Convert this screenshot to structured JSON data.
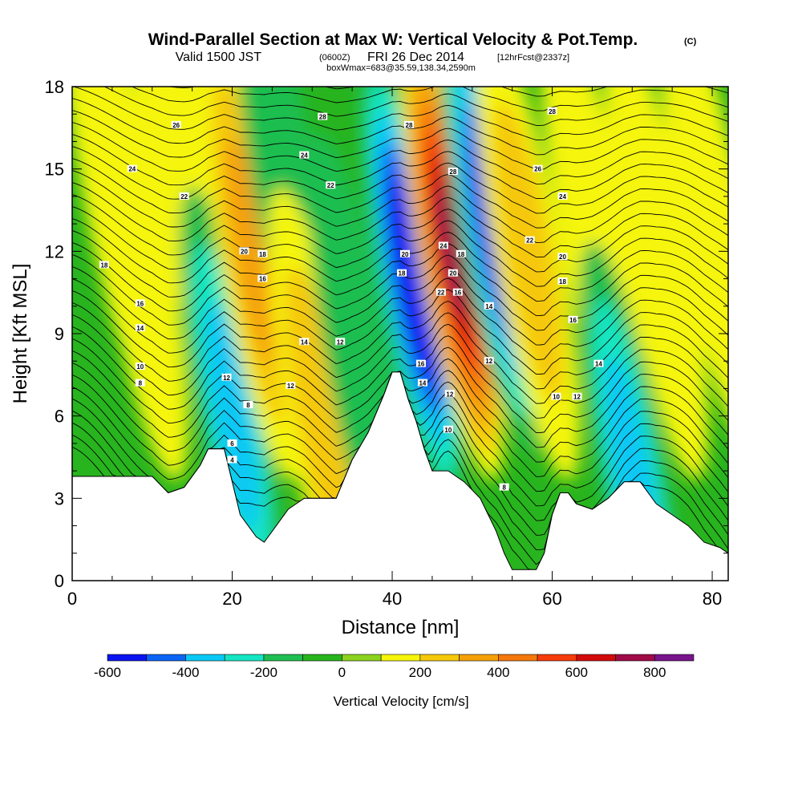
{
  "header": {
    "title": "Wind-Parallel Section at Max W: Vertical Velocity & Pot.Temp.",
    "title_suffix": "(C)",
    "valid_prefix": "Valid 1500 JST",
    "valid_utc": "(0600Z)",
    "valid_date": "FRI 26 Dec 2014",
    "forecast_info": "[12hrFcst@2337z]",
    "box_info": "boxWmax=683@35.59,138.34,2590m"
  },
  "chart_data": {
    "type": "heatmap",
    "title": "Wind-Parallel Section at Max W: Vertical Velocity & Pot.Temp.",
    "xlabel": "Distance [nm]",
    "ylabel": "Height [Kft MSL]",
    "xlim": [
      0,
      82
    ],
    "ylim": [
      0,
      18
    ],
    "x_ticks": [
      "0",
      "20",
      "40",
      "60",
      "80"
    ],
    "y_ticks": [
      "0",
      "3",
      "6",
      "9",
      "12",
      "15",
      "18"
    ],
    "colorbar": {
      "label": "Vertical Velocity [cm/s]",
      "range": [
        -600,
        900
      ],
      "step": 100,
      "tick_labels": [
        "-600",
        "-400",
        "-200",
        "0",
        "200",
        "400",
        "600",
        "800"
      ],
      "colors": [
        "#0a14f0",
        "#0a64f5",
        "#0ac8f5",
        "#14e6c3",
        "#1ebe50",
        "#28b41e",
        "#8cd21e",
        "#f5f50a",
        "#f5c80a",
        "#f5a00a",
        "#f5780a",
        "#f53c0a",
        "#d20a0a",
        "#a00a46",
        "#78148c"
      ]
    },
    "terrain_kft": [
      [
        0,
        3.8
      ],
      [
        10,
        3.8
      ],
      [
        12,
        3.2
      ],
      [
        14,
        3.4
      ],
      [
        16,
        4.2
      ],
      [
        17,
        4.8
      ],
      [
        19,
        4.8
      ],
      [
        20,
        3.6
      ],
      [
        21,
        2.4
      ],
      [
        22,
        2.0
      ],
      [
        23,
        1.6
      ],
      [
        24,
        1.4
      ],
      [
        25,
        1.8
      ],
      [
        27,
        2.6
      ],
      [
        29,
        3.0
      ],
      [
        33,
        3.0
      ],
      [
        35,
        4.4
      ],
      [
        37,
        5.4
      ],
      [
        39,
        6.8
      ],
      [
        40,
        7.6
      ],
      [
        41,
        7.6
      ],
      [
        42,
        6.6
      ],
      [
        43,
        5.8
      ],
      [
        44,
        4.8
      ],
      [
        45,
        4.0
      ],
      [
        47,
        4.0
      ],
      [
        49,
        3.6
      ],
      [
        51,
        3.0
      ],
      [
        53,
        1.8
      ],
      [
        54,
        1.0
      ],
      [
        55,
        0.4
      ],
      [
        58,
        0.4
      ],
      [
        59,
        1.0
      ],
      [
        60,
        2.4
      ],
      [
        61,
        3.2
      ],
      [
        62,
        3.2
      ],
      [
        63,
        2.8
      ],
      [
        65,
        2.6
      ],
      [
        67,
        3.0
      ],
      [
        69,
        3.6
      ],
      [
        71,
        3.6
      ],
      [
        73,
        2.8
      ],
      [
        75,
        2.4
      ],
      [
        77,
        2.0
      ],
      [
        79,
        1.4
      ],
      [
        81,
        1.2
      ],
      [
        82,
        1.0
      ]
    ],
    "w_field_cm_s": [
      {
        "x": 8,
        "y": 12,
        "w": 0
      },
      {
        "x": 5,
        "y": 15,
        "w": 80
      },
      {
        "x": 13,
        "y": 16,
        "w": 100
      },
      {
        "x": 20,
        "y": 6,
        "w": -250
      },
      {
        "x": 22.5,
        "y": 12,
        "w": 250
      },
      {
        "x": 27,
        "y": 14,
        "w": -100
      },
      {
        "x": 31,
        "y": 6,
        "w": 150
      },
      {
        "x": 36,
        "y": 8,
        "w": -100
      },
      {
        "x": 42.5,
        "y": 11,
        "w": -550
      },
      {
        "x": 47.5,
        "y": 12,
        "w": 700
      },
      {
        "x": 52.5,
        "y": 13,
        "w": -500
      },
      {
        "x": 57,
        "y": 12,
        "w": 150
      },
      {
        "x": 65,
        "y": 13,
        "w": 100
      },
      {
        "x": 70,
        "y": 4,
        "w": -250
      },
      {
        "x": 73,
        "y": 12,
        "w": 50
      },
      {
        "x": 80,
        "y": 13,
        "w": 50
      }
    ],
    "contour_labels": [
      {
        "text": "26",
        "x": 13,
        "y": 16.6
      },
      {
        "text": "24",
        "x": 7.5,
        "y": 15.0
      },
      {
        "text": "22",
        "x": 14,
        "y": 14.0
      },
      {
        "text": "18",
        "x": 4,
        "y": 11.5
      },
      {
        "text": "16",
        "x": 8.5,
        "y": 10.1
      },
      {
        "text": "14",
        "x": 8.5,
        "y": 9.2
      },
      {
        "text": "10",
        "x": 8.5,
        "y": 7.8
      },
      {
        "text": "8",
        "x": 8.5,
        "y": 7.2
      },
      {
        "text": "20",
        "x": 21.5,
        "y": 12.0
      },
      {
        "text": "18",
        "x": 23.8,
        "y": 11.9
      },
      {
        "text": "16",
        "x": 23.8,
        "y": 11.0
      },
      {
        "text": "12",
        "x": 19.3,
        "y": 7.4
      },
      {
        "text": "8",
        "x": 22,
        "y": 6.4
      },
      {
        "text": "6",
        "x": 20,
        "y": 5.0
      },
      {
        "text": "4",
        "x": 20,
        "y": 4.4
      },
      {
        "text": "28",
        "x": 31.3,
        "y": 16.9
      },
      {
        "text": "24",
        "x": 29,
        "y": 15.5
      },
      {
        "text": "22",
        "x": 32.3,
        "y": 14.4
      },
      {
        "text": "14",
        "x": 29,
        "y": 8.7
      },
      {
        "text": "12",
        "x": 33.5,
        "y": 8.7
      },
      {
        "text": "12",
        "x": 27.3,
        "y": 7.1
      },
      {
        "text": "28",
        "x": 42.1,
        "y": 16.6
      },
      {
        "text": "20",
        "x": 41.6,
        "y": 11.9
      },
      {
        "text": "18",
        "x": 41.2,
        "y": 11.2
      },
      {
        "text": "16",
        "x": 43.6,
        "y": 7.9
      },
      {
        "text": "14",
        "x": 43.8,
        "y": 7.2
      },
      {
        "text": "28",
        "x": 47.6,
        "y": 14.9
      },
      {
        "text": "24",
        "x": 46.4,
        "y": 12.2
      },
      {
        "text": "20",
        "x": 47.6,
        "y": 11.2
      },
      {
        "text": "18",
        "x": 48.6,
        "y": 11.9
      },
      {
        "text": "16",
        "x": 48.2,
        "y": 10.5
      },
      {
        "text": "22",
        "x": 46.1,
        "y": 10.5
      },
      {
        "text": "12",
        "x": 47.2,
        "y": 6.8
      },
      {
        "text": "10",
        "x": 47.0,
        "y": 5.5
      },
      {
        "text": "14",
        "x": 52.1,
        "y": 10.0
      },
      {
        "text": "12",
        "x": 52.1,
        "y": 8.0
      },
      {
        "text": "8",
        "x": 54,
        "y": 3.4
      },
      {
        "text": "28",
        "x": 60,
        "y": 17.1
      },
      {
        "text": "26",
        "x": 58.2,
        "y": 15.0
      },
      {
        "text": "24",
        "x": 61.3,
        "y": 14.0
      },
      {
        "text": "22",
        "x": 57.2,
        "y": 12.4
      },
      {
        "text": "20",
        "x": 61.3,
        "y": 11.8
      },
      {
        "text": "18",
        "x": 61.3,
        "y": 10.9
      },
      {
        "text": "16",
        "x": 62.6,
        "y": 9.5
      },
      {
        "text": "14",
        "x": 65.8,
        "y": 7.9
      },
      {
        "text": "10",
        "x": 60.5,
        "y": 6.7
      },
      {
        "text": "12",
        "x": 63.1,
        "y": 6.7
      }
    ]
  }
}
